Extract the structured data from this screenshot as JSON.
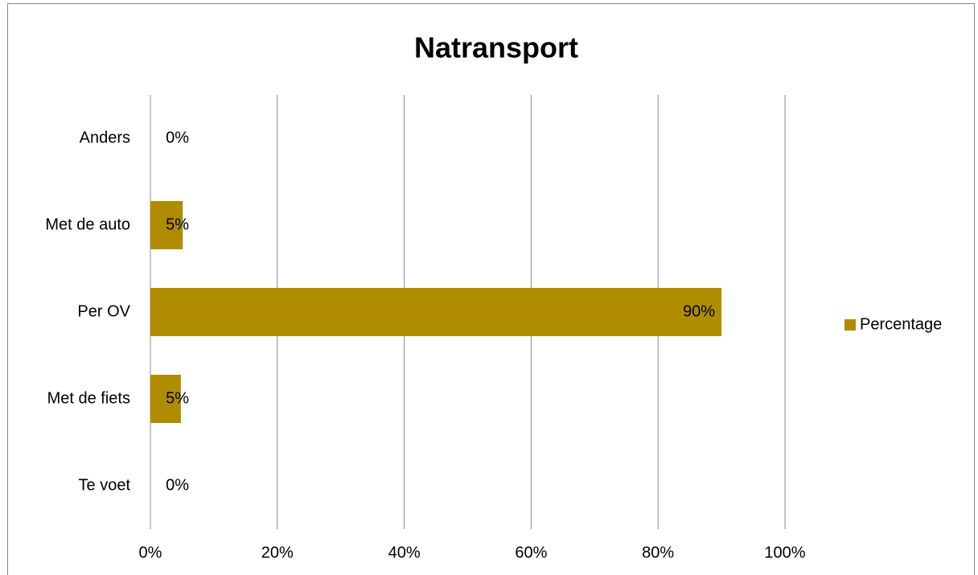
{
  "chart_data": {
    "type": "bar",
    "orientation": "horizontal",
    "title": "Natransport",
    "categories": [
      "Te voet",
      "Met de fiets",
      "Per OV",
      "Met de auto",
      "Anders"
    ],
    "series": [
      {
        "name": "Percentage",
        "color": "#b08c00",
        "values": [
          0,
          4.8,
          90,
          5.1,
          0
        ],
        "value_labels": [
          "0%",
          "5%",
          "90%",
          "5%",
          "0%"
        ]
      }
    ],
    "xlim": [
      0,
      100
    ],
    "xticks": [
      {
        "value": 0,
        "label": "0%"
      },
      {
        "value": 20,
        "label": "20%"
      },
      {
        "value": 40,
        "label": "40%"
      },
      {
        "value": 60,
        "label": "60%"
      },
      {
        "value": 80,
        "label": "80%"
      },
      {
        "value": 100,
        "label": "100%"
      }
    ],
    "grid": true,
    "legend": "right"
  }
}
